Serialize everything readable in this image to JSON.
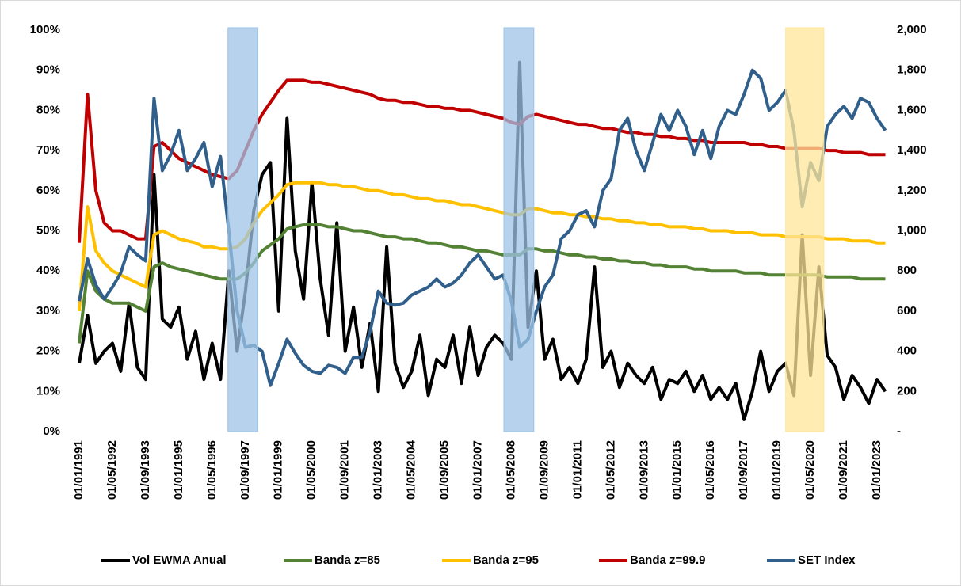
{
  "chart_data": {
    "type": "line",
    "categories": [
      "01/01/1991",
      null,
      null,
      null,
      "01/05/1992",
      null,
      null,
      null,
      "01/09/1993",
      null,
      null,
      null,
      "01/01/1995",
      null,
      null,
      null,
      "01/05/1996",
      null,
      null,
      null,
      "01/09/1997",
      null,
      null,
      null,
      "01/01/1999",
      null,
      null,
      null,
      "01/05/2000",
      null,
      null,
      null,
      "01/09/2001",
      null,
      null,
      null,
      "01/01/2003",
      null,
      null,
      null,
      "01/05/2004",
      null,
      null,
      null,
      "01/09/2005",
      null,
      null,
      null,
      "01/01/2007",
      null,
      null,
      null,
      "01/05/2008",
      null,
      null,
      null,
      "01/09/2009",
      null,
      null,
      null,
      "01/01/2011",
      null,
      null,
      null,
      "01/05/2012",
      null,
      null,
      null,
      "01/09/2013",
      null,
      null,
      null,
      "01/01/2015",
      null,
      null,
      null,
      "01/05/2016",
      null,
      null,
      null,
      "01/09/2017",
      null,
      null,
      null,
      "01/01/2019",
      null,
      null,
      null,
      "01/05/2020",
      null,
      null,
      null,
      "01/09/2021",
      null,
      null,
      null,
      "01/01/2023",
      null
    ],
    "series": [
      {
        "name": "Vol EWMA Anual",
        "color": "#000000",
        "values": [
          17,
          29,
          17,
          20,
          22,
          15,
          32,
          16,
          13,
          64,
          28,
          26,
          31,
          18,
          25,
          13,
          22,
          13,
          40,
          20,
          35,
          55,
          64,
          67,
          30,
          78,
          45,
          33,
          62,
          38,
          24,
          52,
          20,
          31,
          16,
          27,
          10,
          46,
          17,
          11,
          15,
          24,
          9,
          18,
          16,
          24,
          12,
          26,
          14,
          21,
          24,
          22,
          18,
          92,
          26,
          40,
          18,
          23,
          13,
          16,
          12,
          18,
          41,
          16,
          20,
          11,
          17,
          14,
          12,
          16,
          8,
          13,
          12,
          15,
          10,
          14,
          8,
          11,
          8,
          12,
          3,
          10,
          20,
          10,
          15,
          17,
          9,
          49,
          14,
          41,
          19,
          16,
          8,
          14,
          11,
          7,
          13,
          10
        ]
      },
      {
        "name": "Banda z=85",
        "color": "#548235",
        "values": [
          22,
          40,
          35,
          33,
          32,
          32,
          32,
          31,
          30,
          41,
          42,
          41,
          40.5,
          40,
          39.5,
          39,
          38.5,
          38,
          38,
          38,
          39.5,
          42,
          45,
          46.5,
          48,
          50.5,
          51,
          51.5,
          51.5,
          51.5,
          51,
          51,
          50.5,
          50,
          50,
          49.5,
          49,
          48.5,
          48.5,
          48,
          48,
          47.5,
          47,
          47,
          46.5,
          46,
          46,
          45.5,
          45,
          45,
          44.5,
          44,
          44,
          44,
          45.5,
          45.5,
          45,
          45,
          44.5,
          44,
          44,
          43.5,
          43.5,
          43,
          43,
          42.5,
          42.5,
          42,
          42,
          41.5,
          41.5,
          41,
          41,
          41,
          40.5,
          40.5,
          40,
          40,
          40,
          40,
          39.5,
          39.5,
          39.5,
          39,
          39,
          39,
          39,
          39,
          39,
          39,
          38.5,
          38.5,
          38.5,
          38.5,
          38,
          38,
          38,
          38
        ]
      },
      {
        "name": "Banda z=95",
        "color": "#ffc000",
        "values": [
          30,
          56,
          45,
          42,
          40,
          39,
          38,
          37,
          36,
          49,
          50,
          49,
          48,
          47.5,
          47,
          46,
          46,
          45.5,
          45.5,
          46,
          48,
          52,
          55,
          57,
          59,
          61.5,
          62,
          62,
          62,
          62,
          61.5,
          61.5,
          61,
          61,
          60.5,
          60,
          60,
          59.5,
          59,
          59,
          58.5,
          58,
          58,
          57.5,
          57.5,
          57,
          56.5,
          56.5,
          56,
          55.5,
          55,
          54.5,
          54,
          54,
          55.5,
          55.5,
          55,
          54.5,
          54.5,
          54,
          54,
          53.5,
          53.5,
          53,
          53,
          52.5,
          52.5,
          52,
          52,
          51.5,
          51.5,
          51,
          51,
          51,
          50.5,
          50.5,
          50,
          50,
          50,
          49.5,
          49.5,
          49.5,
          49,
          49,
          49,
          48.5,
          48.5,
          48.5,
          48.5,
          48.5,
          48,
          48,
          48,
          47.5,
          47.5,
          47.5,
          47,
          47
        ]
      },
      {
        "name": "Banda z=99.9",
        "color": "#c00000",
        "values": [
          47,
          84,
          60,
          52,
          50,
          50,
          49,
          48,
          48,
          71,
          72,
          70,
          68,
          67,
          66,
          65,
          64,
          63.5,
          63,
          65,
          70,
          75,
          79,
          82,
          85,
          87.5,
          87.5,
          87.5,
          87,
          87,
          86.5,
          86,
          85.5,
          85,
          84.5,
          84,
          83,
          82.5,
          82.5,
          82,
          82,
          81.5,
          81,
          81,
          80.5,
          80.5,
          80,
          80,
          79.5,
          79,
          78.5,
          78,
          77,
          76.5,
          78.5,
          79,
          78.5,
          78,
          77.5,
          77,
          76.5,
          76.5,
          76,
          75.5,
          75.5,
          75,
          74.5,
          74.5,
          74,
          74,
          73.5,
          73.5,
          73,
          73,
          72.5,
          72.5,
          72,
          72,
          72,
          72,
          72,
          71.5,
          71.5,
          71,
          71,
          70.5,
          70.5,
          70.5,
          70.5,
          70.5,
          70,
          70,
          69.5,
          69.5,
          69.5,
          69,
          69,
          69
        ]
      },
      {
        "name": "SET Index",
        "color": "#2f5f8a",
        "axis": "y2",
        "values": [
          650,
          860,
          730,
          660,
          720,
          790,
          920,
          880,
          850,
          1660,
          1300,
          1380,
          1500,
          1300,
          1360,
          1440,
          1220,
          1370,
          1000,
          600,
          420,
          430,
          400,
          230,
          340,
          460,
          390,
          330,
          300,
          290,
          330,
          320,
          290,
          370,
          370,
          500,
          700,
          640,
          630,
          640,
          680,
          700,
          720,
          760,
          720,
          740,
          780,
          840,
          880,
          820,
          760,
          780,
          650,
          420,
          460,
          600,
          720,
          780,
          960,
          1000,
          1080,
          1100,
          1020,
          1200,
          1260,
          1500,
          1560,
          1400,
          1300,
          1440,
          1580,
          1500,
          1600,
          1520,
          1380,
          1500,
          1360,
          1520,
          1600,
          1580,
          1680,
          1800,
          1760,
          1600,
          1640,
          1700,
          1500,
          1120,
          1340,
          1250,
          1520,
          1580,
          1620,
          1560,
          1660,
          1640,
          1560,
          1500
        ]
      }
    ],
    "ylim": [
      0,
      100
    ],
    "yticks": [
      {
        "value": 0,
        "label": "0%"
      },
      {
        "value": 10,
        "label": "10%"
      },
      {
        "value": 20,
        "label": "20%"
      },
      {
        "value": 30,
        "label": "30%"
      },
      {
        "value": 40,
        "label": "40%"
      },
      {
        "value": 50,
        "label": "50%"
      },
      {
        "value": 60,
        "label": "60%"
      },
      {
        "value": 70,
        "label": "70%"
      },
      {
        "value": 80,
        "label": "80%"
      },
      {
        "value": 90,
        "label": "90%"
      },
      {
        "value": 100,
        "label": "100%"
      }
    ],
    "y2lim": [
      0,
      2000
    ],
    "y2ticks": [
      {
        "value": 0,
        "label": "-"
      },
      200,
      400,
      600,
      800,
      {
        "value": 1000,
        "label": "1,000"
      },
      {
        "value": 1200,
        "label": "1,200"
      },
      {
        "value": 1400,
        "label": "1,400"
      },
      {
        "value": 1600,
        "label": "1,600"
      },
      {
        "value": 1800,
        "label": "1,800"
      },
      {
        "value": 2000,
        "label": "2,000"
      }
    ],
    "highlights": [
      {
        "from": 17.9,
        "to": 21.5,
        "color": "#9dc3e6"
      },
      {
        "from": 51.1,
        "to": 54.7,
        "color": "#9dc3e6"
      },
      {
        "from": 85,
        "to": 89.6,
        "color": "#ffe699"
      }
    ],
    "grid": false,
    "legend": "bottom"
  }
}
